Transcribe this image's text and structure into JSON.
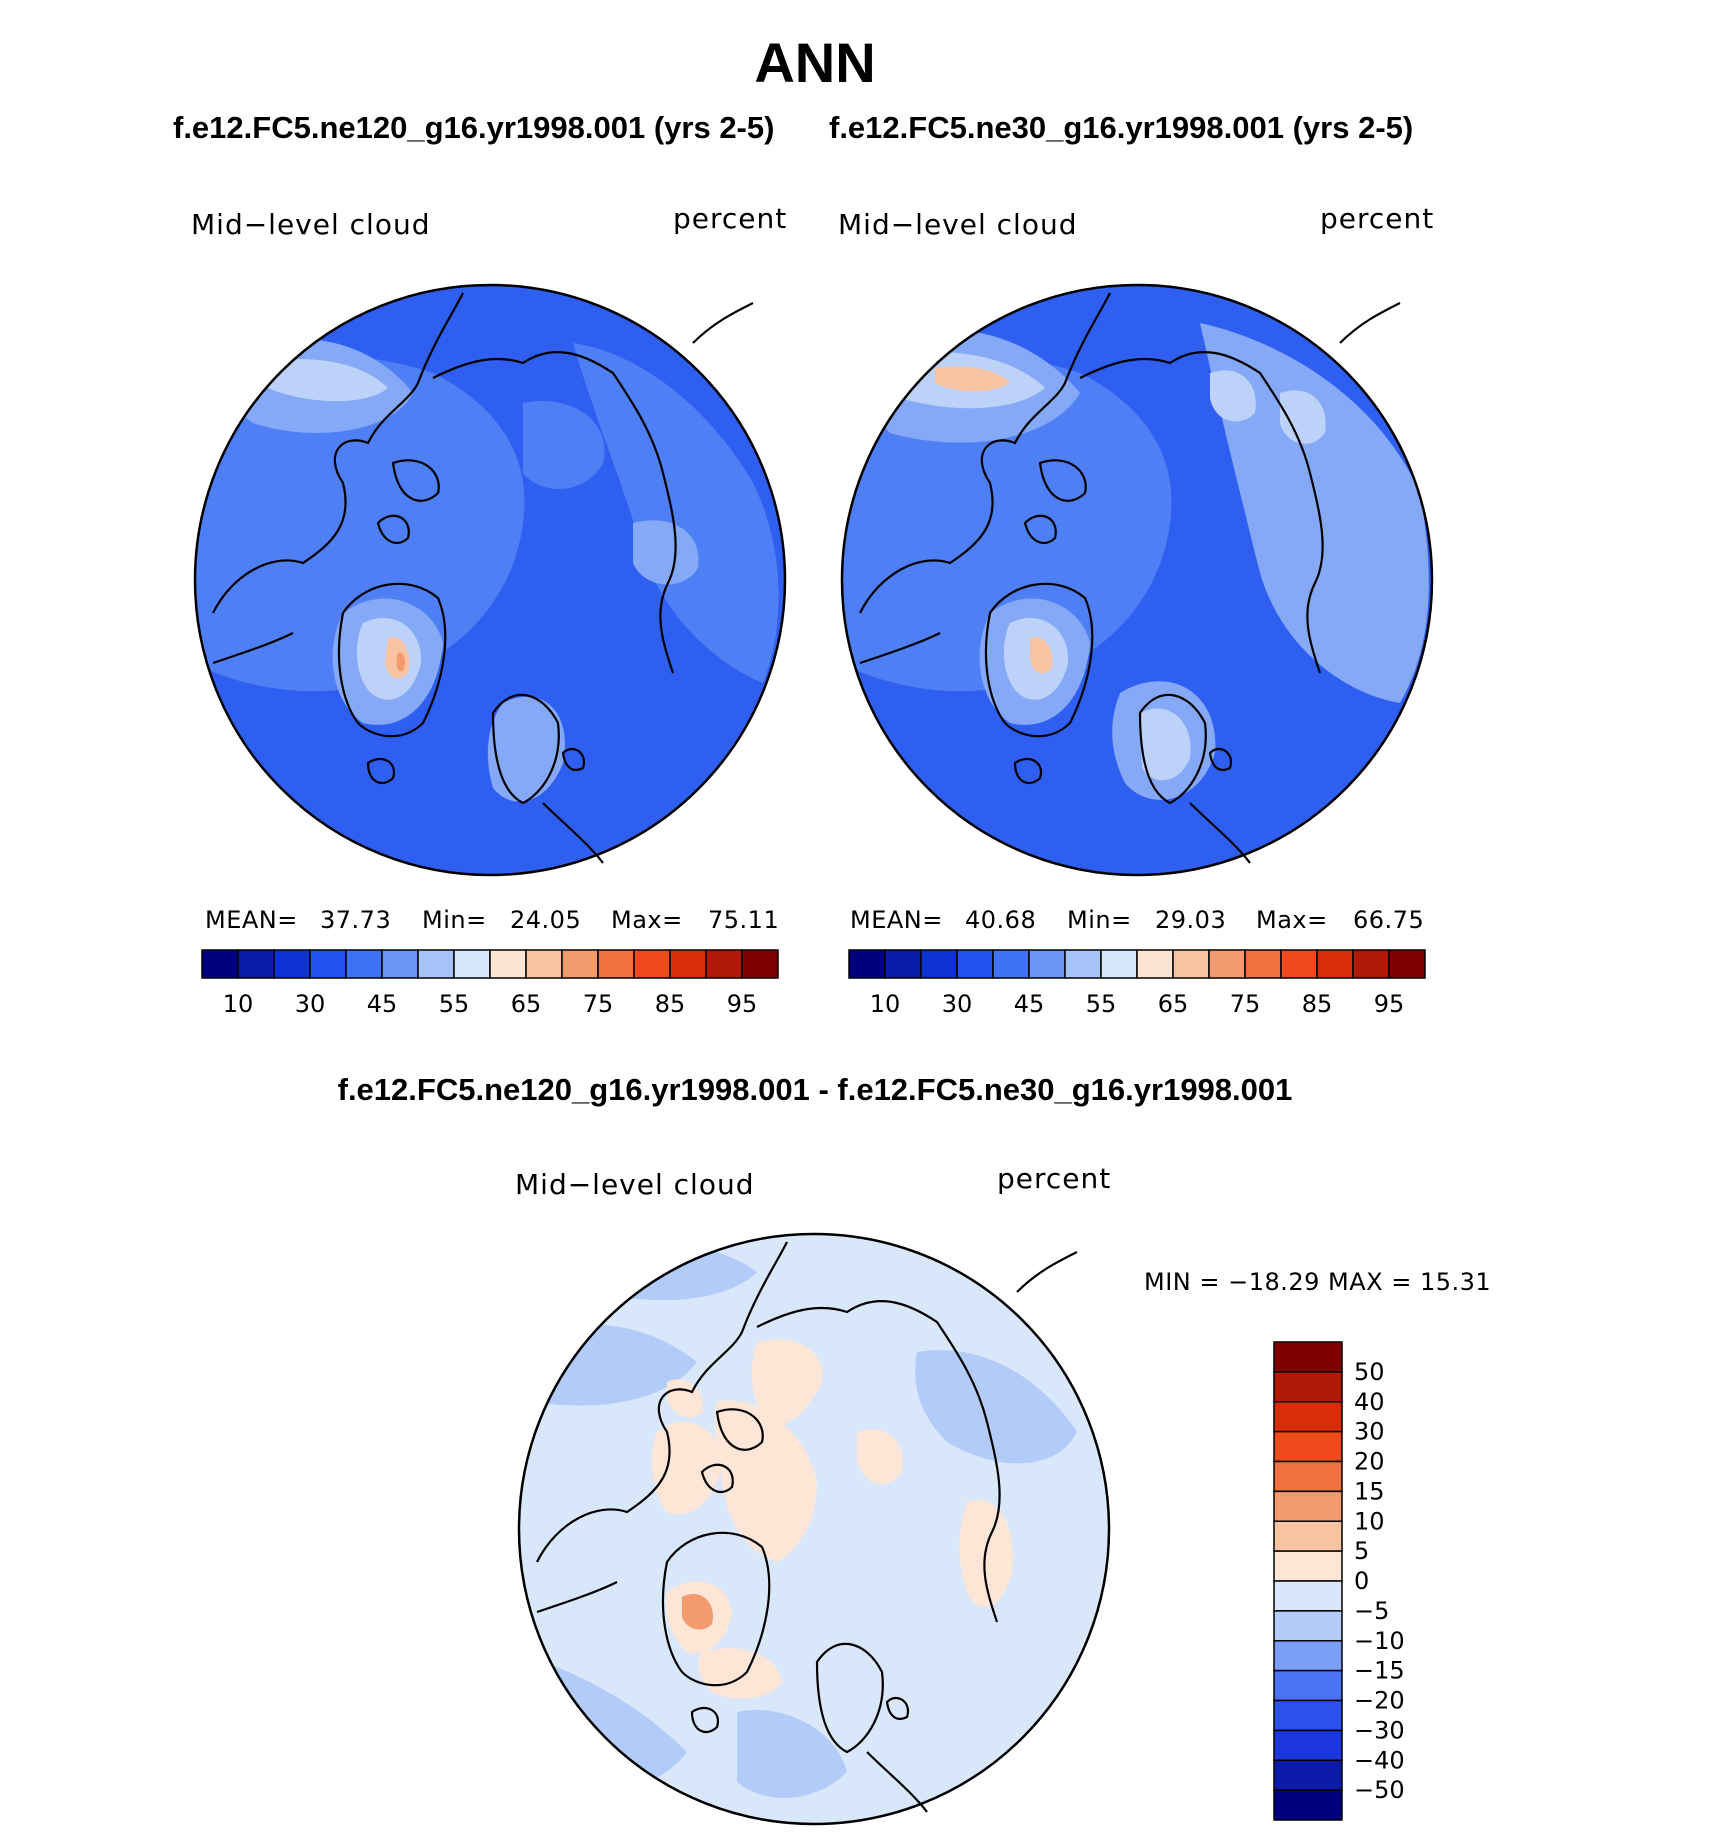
{
  "title": "ANN",
  "panels": [
    {
      "case_title": "f.e12.FC5.ne120_g16.yr1998.001 (yrs 2-5)",
      "variable": "Mid−level cloud",
      "units": "percent",
      "stats": {
        "mean_label": "MEAN=",
        "mean": "37.73",
        "min_label": "Min=",
        "min": "24.05",
        "max_label": "Max=",
        "max": "75.11"
      }
    },
    {
      "case_title": "f.e12.FC5.ne30_g16.yr1998.001 (yrs 2-5)",
      "variable": "Mid−level cloud",
      "units": "percent",
      "stats": {
        "mean_label": "MEAN=",
        "mean": "40.68",
        "min_label": "Min=",
        "min": "29.03",
        "max_label": "Max=",
        "max": "66.75"
      }
    }
  ],
  "diff_panel": {
    "title": "f.e12.FC5.ne120_g16.yr1998.001 - f.e12.FC5.ne30_g16.yr1998.001",
    "variable": "Mid−level cloud",
    "units": "percent",
    "minmax_text": "MIN = −18.29 MAX =   15.31"
  },
  "colorbars": {
    "absolute": {
      "colors": [
        "#00007f",
        "#0a1aa8",
        "#0c32d4",
        "#2052f0",
        "#3e73f3",
        "#6a97f6",
        "#a6c3f8",
        "#d8e8fb",
        "#fde5d3",
        "#f9c2a0",
        "#f49a6f",
        "#f2703f",
        "#ef4a1b",
        "#d92d0a",
        "#b01a06",
        "#800000"
      ],
      "tick_labels": [
        "10",
        "30",
        "45",
        "55",
        "65",
        "75",
        "85",
        "95"
      ]
    },
    "difference": {
      "colors": [
        "#00007f",
        "#0c1ba8",
        "#1a36dc",
        "#2d52f0",
        "#4a74f4",
        "#7a9ef7",
        "#b3cbf8",
        "#d9e7fb",
        "#fde6d5",
        "#f9c4a2",
        "#f49a6f",
        "#f2703f",
        "#ef4a1b",
        "#d92d0a",
        "#b01a06",
        "#800000"
      ],
      "tick_labels": [
        "50",
        "40",
        "30",
        "20",
        "15",
        "10",
        "5",
        "0",
        "−5",
        "−10",
        "−15",
        "−20",
        "−30",
        "−40",
        "−50"
      ]
    }
  },
  "map_fill_colors": {
    "absolute_base": "#2f5ff0",
    "absolute_mid": "#4f7ff5",
    "absolute_light": "#85a9f6",
    "absolute_pale": "#bcd2f8",
    "absolute_warm": "#f9c2a0",
    "absolute_hot": "#f49a6f",
    "diff_base": "#d9e7fb",
    "diff_cool": "#b3cbf8",
    "diff_warm": "#fde6d5",
    "diff_hot": "#f49a6f"
  }
}
